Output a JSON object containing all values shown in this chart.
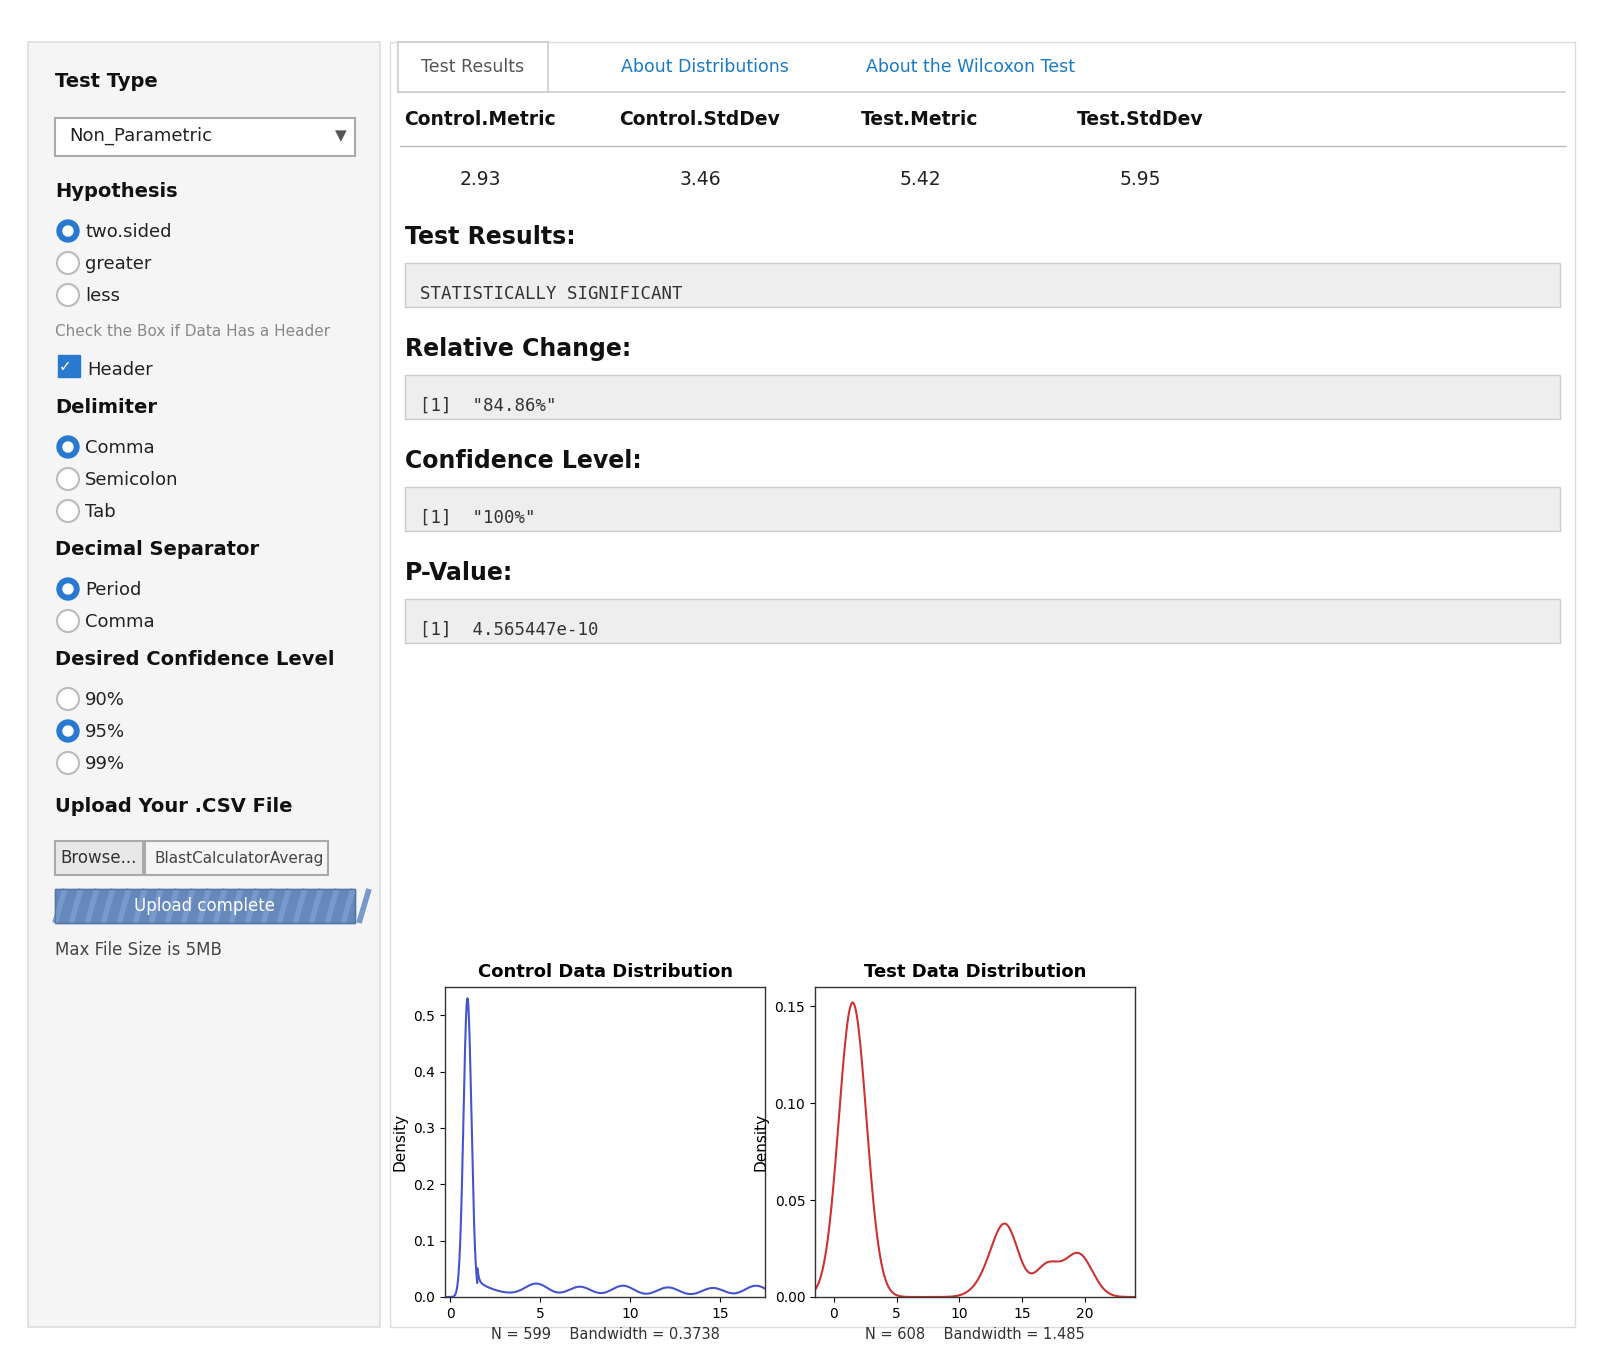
{
  "bg_color": "#ffffff",
  "left_panel_bg": "#f5f5f5",
  "right_panel_bg": "#ffffff",
  "gray_bg": "#eeeeee",
  "blue_radio": "#2979d0",
  "blue_tab": "#1a7bc4",
  "border_color": "#cccccc",
  "test_type_label": "Test Type",
  "test_type_value": "Non_Parametric",
  "hypothesis_label": "Hypothesis",
  "hypothesis_options": [
    "two.sided",
    "greater",
    "less"
  ],
  "hypothesis_selected": 0,
  "header_label": "Check the Box if Data Has a Header",
  "header_text": "Header",
  "delimiter_label": "Delimiter",
  "delimiter_options": [
    "Comma",
    "Semicolon",
    "Tab"
  ],
  "delimiter_selected": 0,
  "decimal_label": "Decimal Separator",
  "decimal_options": [
    "Period",
    "Comma"
  ],
  "decimal_selected": 0,
  "confidence_label": "Desired Confidence Level",
  "confidence_options": [
    "90%",
    "95%",
    "99%"
  ],
  "confidence_selected": 1,
  "upload_label": "Upload Your .CSV File",
  "browse_text": "Browse...",
  "file_text": "BlastCalculatorAverag",
  "upload_complete": "Upload complete",
  "max_file": "Max File Size is 5MB",
  "tab1": "Test Results",
  "tab2": "About Distributions",
  "tab3": "About the Wilcoxon Test",
  "col_headers": [
    "Control.Metric",
    "Control.StdDev",
    "Test.Metric",
    "Test.StdDev"
  ],
  "col_values": [
    "2.93",
    "3.46",
    "5.42",
    "5.95"
  ],
  "test_results_label": "Test Results:",
  "test_results_value": "STATISTICALLY SIGNIFICANT",
  "rel_change_label": "Relative Change:",
  "rel_change_value": "[1]  \"84.86%\"",
  "conf_level_label": "Confidence Level:",
  "conf_level_value": "[1]  \"100%\"",
  "pvalue_label": "P-Value:",
  "pvalue_value": "[1]  4.565447e-10",
  "control_dist_title": "Control Data Distribution",
  "test_dist_title": "Test Data Distribution",
  "control_n_bw": "N = 599    Bandwidth = 0.3738",
  "test_n_bw": "N = 608    Bandwidth = 1.485",
  "control_color": "#4455cc",
  "test_color": "#cc3333",
  "upload_btn_color": "#5577aa",
  "upload_btn_stripe": "#6688bb"
}
